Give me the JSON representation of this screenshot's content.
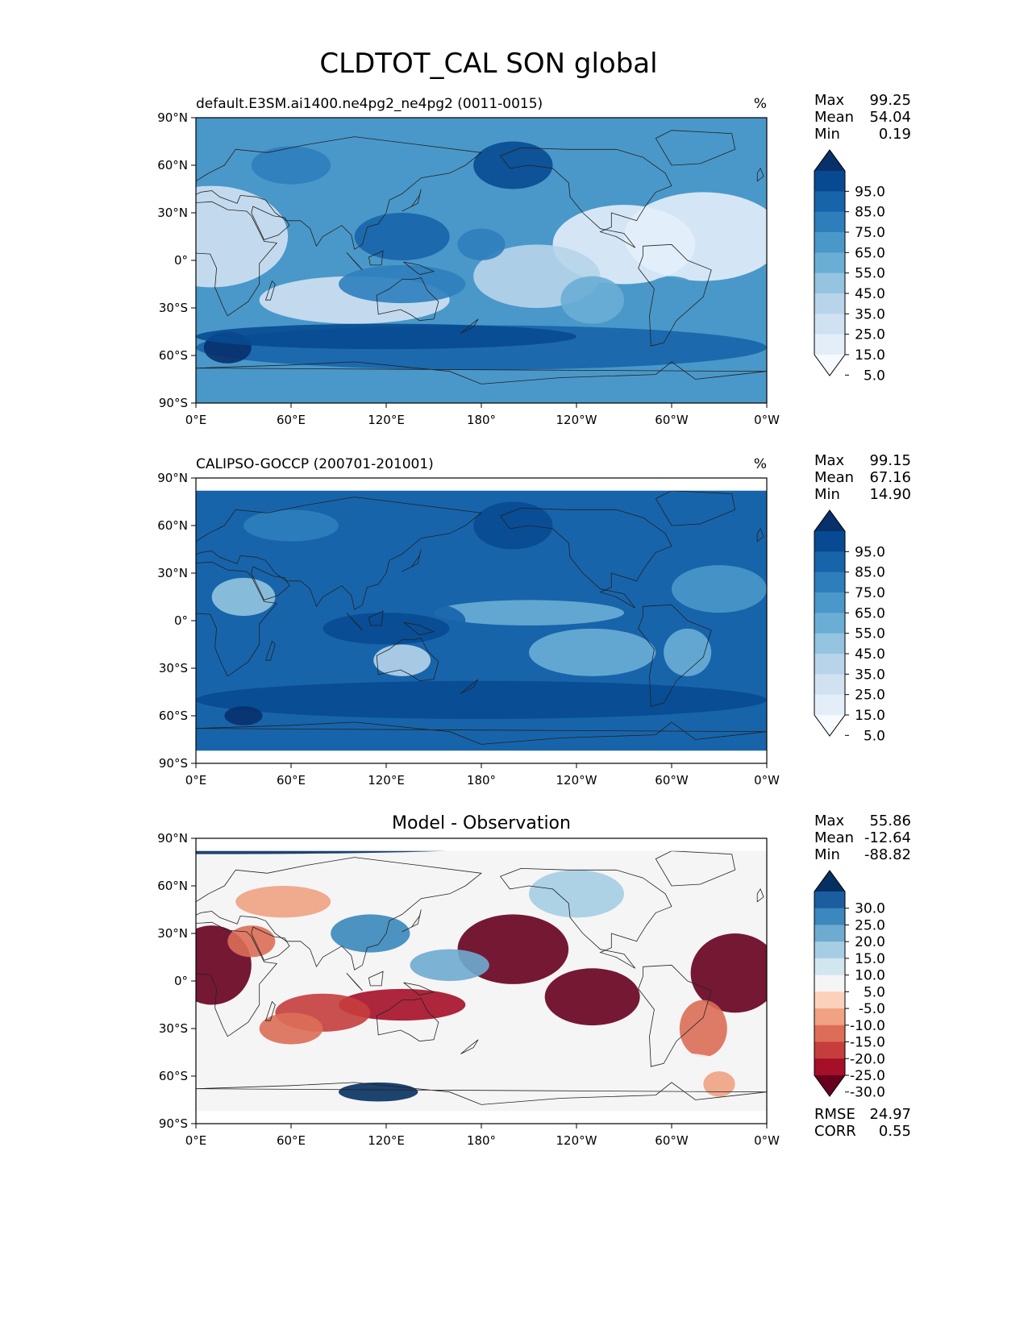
{
  "figure_title": "CLDTOT_CAL SON global",
  "panels": [
    {
      "id": "model",
      "title_left": "default.E3SM.ai1400.ne4pg2_ne4pg2 (0011-0015)",
      "title_center": "",
      "units": "%",
      "stats": [
        {
          "label": "Max",
          "value": "99.25"
        },
        {
          "label": "Mean",
          "value": "54.04"
        },
        {
          "label": "Min",
          "value": "0.19"
        }
      ],
      "colorbar_levels": [
        "95.0",
        "85.0",
        "75.0",
        "65.0",
        "55.0",
        "45.0",
        "35.0",
        "25.0",
        "15.0",
        "5.0"
      ],
      "colors": [
        "#f7fbff",
        "#e3eef9",
        "#d0e1f2",
        "#b7d4ea",
        "#94c4df",
        "#6aaed6",
        "#4a98c9",
        "#2e7ebc",
        "#1764ab",
        "#084a91",
        "#08306b"
      ],
      "extra_stats": []
    },
    {
      "id": "obs",
      "title_left": "CALIPSO-GOCCP (200701-201001)",
      "title_center": "",
      "units": "%",
      "stats": [
        {
          "label": "Max",
          "value": "99.15"
        },
        {
          "label": "Mean",
          "value": "67.16"
        },
        {
          "label": "Min",
          "value": "14.90"
        }
      ],
      "colorbar_levels": [
        "95.0",
        "85.0",
        "75.0",
        "65.0",
        "55.0",
        "45.0",
        "35.0",
        "25.0",
        "15.0",
        "5.0"
      ],
      "colors": [
        "#f7fbff",
        "#e3eef9",
        "#d0e1f2",
        "#b7d4ea",
        "#94c4df",
        "#6aaed6",
        "#4a98c9",
        "#2e7ebc",
        "#1764ab",
        "#084a91",
        "#08306b"
      ],
      "extra_stats": []
    },
    {
      "id": "diff",
      "title_left": "",
      "title_center": "Model - Observation",
      "units": "",
      "stats": [
        {
          "label": "Max",
          "value": "55.86"
        },
        {
          "label": "Mean",
          "value": "-12.64"
        },
        {
          "label": "Min",
          "value": "-88.82"
        }
      ],
      "colorbar_levels": [
        "30.0",
        "25.0",
        "20.0",
        "15.0",
        "10.0",
        "5.0",
        "-5.0",
        "-10.0",
        "-15.0",
        "-20.0",
        "-25.0",
        "-30.0"
      ],
      "colors": [
        "#67001f",
        "#a50f28",
        "#c53e3d",
        "#dc6e57",
        "#f0a283",
        "#fbd1bc",
        "#f5f5f5",
        "#d2e6f0",
        "#a5cee3",
        "#6fabd0",
        "#3a88bd",
        "#1c5d9f",
        "#053061"
      ],
      "extra_stats": [
        {
          "label": "RMSE",
          "value": "24.97"
        },
        {
          "label": "CORR",
          "value": "0.55"
        }
      ]
    }
  ],
  "axes": {
    "x_ticks": [
      "0°E",
      "60°E",
      "120°E",
      "180°",
      "120°W",
      "60°W",
      "0°W"
    ],
    "y_ticks": [
      "90°N",
      "60°N",
      "30°N",
      "0°",
      "30°S",
      "60°S",
      "90°S"
    ]
  },
  "chart_data": [
    {
      "type": "heatmap",
      "panel": "model",
      "x": [
        0,
        60,
        120,
        180,
        240,
        300,
        360
      ],
      "y": [
        90,
        60,
        30,
        0,
        -30,
        -60,
        -90
      ],
      "xlim": [
        0,
        360
      ],
      "ylim": [
        -90,
        90
      ],
      "colorbar_range": [
        5,
        95
      ],
      "max": 99.25,
      "mean": 54.04,
      "min": 0.19
    },
    {
      "type": "heatmap",
      "panel": "obs",
      "x": [
        0,
        60,
        120,
        180,
        240,
        300,
        360
      ],
      "y": [
        90,
        60,
        30,
        0,
        -30,
        -60,
        -90
      ],
      "xlim": [
        0,
        360
      ],
      "ylim": [
        -90,
        90
      ],
      "colorbar_range": [
        5,
        95
      ],
      "max": 99.15,
      "mean": 67.16,
      "min": 14.9
    },
    {
      "type": "heatmap",
      "panel": "diff",
      "x": [
        0,
        60,
        120,
        180,
        240,
        300,
        360
      ],
      "y": [
        90,
        60,
        30,
        0,
        -30,
        -60,
        -90
      ],
      "xlim": [
        0,
        360
      ],
      "ylim": [
        -90,
        90
      ],
      "colorbar_range": [
        -30,
        30
      ],
      "max": 55.86,
      "mean": -12.64,
      "min": -88.82,
      "rmse": 24.97,
      "corr": 0.55
    }
  ]
}
